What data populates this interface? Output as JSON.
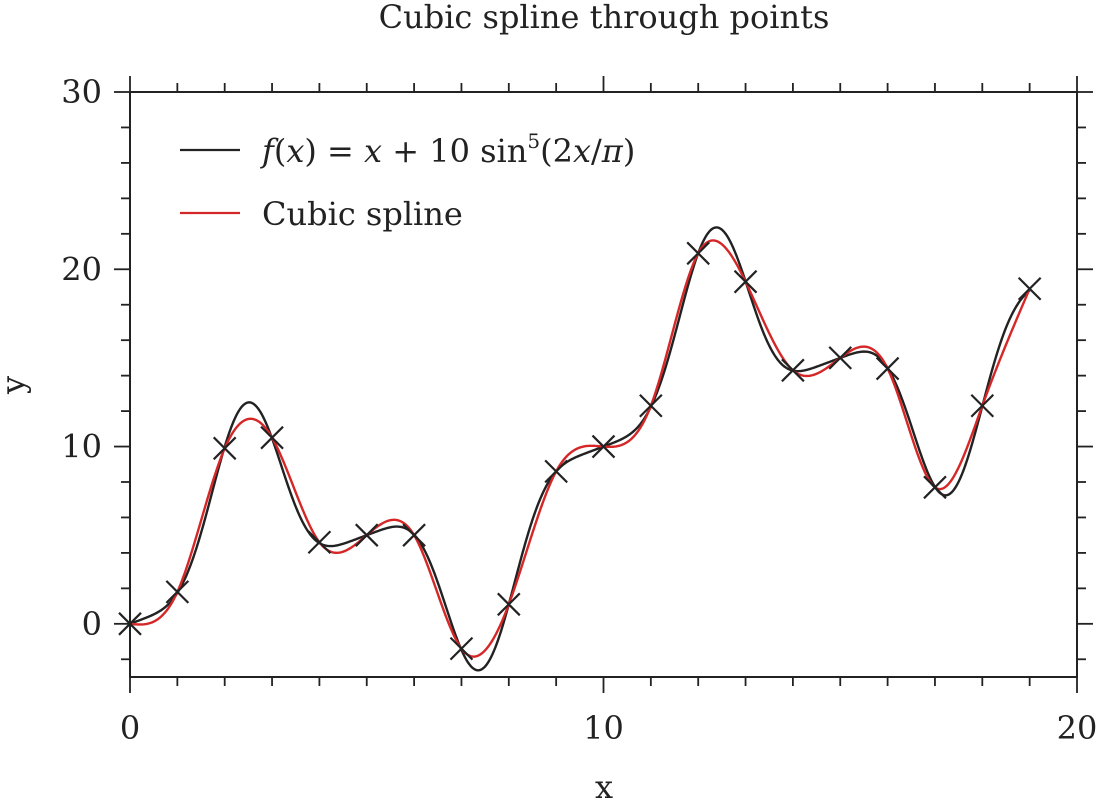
{
  "chart_data": {
    "type": "line",
    "title": "Cubic spline through points",
    "xlabel": "x",
    "ylabel": "y",
    "xlim": [
      0,
      20
    ],
    "ylim": [
      -3,
      30
    ],
    "x_ticks": [
      0,
      10,
      20
    ],
    "x_tick_labels": [
      "0",
      "10",
      "20"
    ],
    "y_ticks": [
      0,
      10,
      20,
      30
    ],
    "y_tick_labels": [
      "0",
      "10",
      "20",
      "30"
    ],
    "grid": false,
    "legend_position": "top-left",
    "series": [
      {
        "name": "f(x) = x + 10 sin⁵(2x/π)",
        "color": "#222222",
        "function": "x + 10*sin(2*x/pi)^5",
        "x_range": [
          0,
          19
        ]
      },
      {
        "name": "Cubic spline",
        "color": "#d62728",
        "type": "natural cubic spline through points",
        "x_range": [
          0,
          19
        ]
      }
    ],
    "points": {
      "marker": "x",
      "color": "#222222",
      "x": [
        0,
        1,
        2,
        3,
        4,
        5,
        6,
        7,
        8,
        9,
        10,
        11,
        12,
        13,
        14,
        15,
        16,
        17,
        18,
        19
      ],
      "y": [
        0,
        1.8,
        9.9,
        10.5,
        4.6,
        5.0,
        5.0,
        -1.4,
        1.1,
        8.6,
        10.0,
        12.3,
        20.9,
        19.3,
        14.3,
        15.0,
        14.4,
        7.7,
        12.3,
        18.9
      ]
    }
  }
}
